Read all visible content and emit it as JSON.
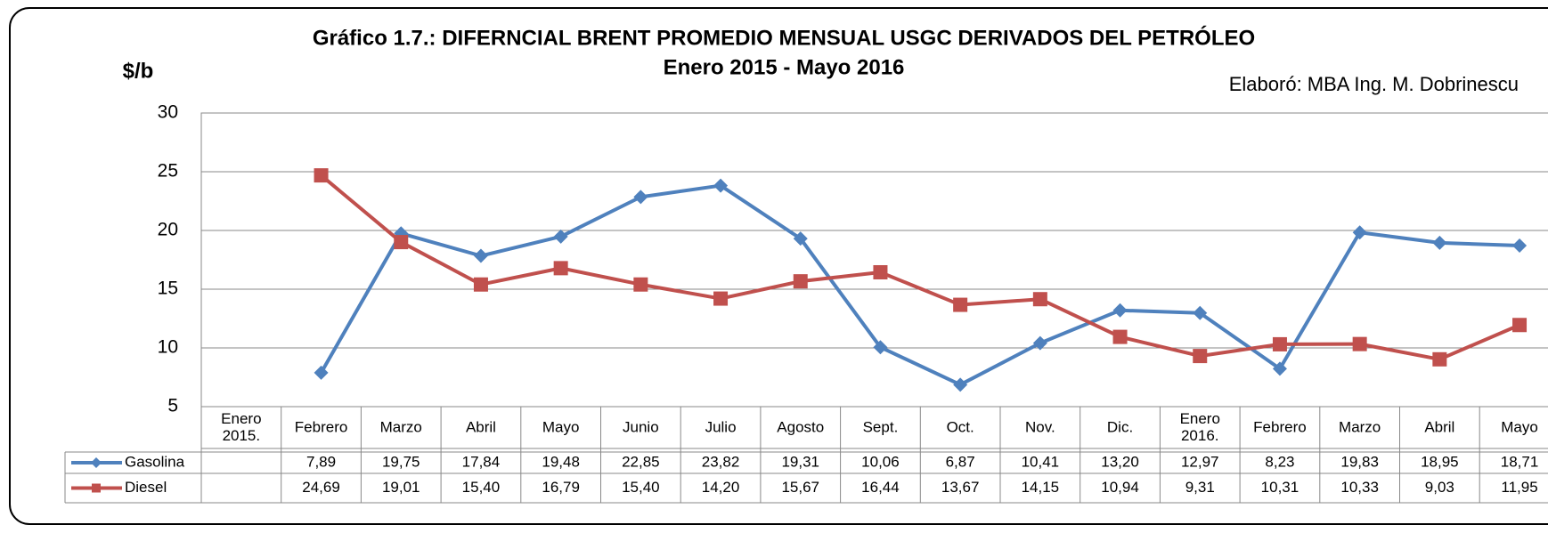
{
  "chart_data": {
    "type": "line",
    "title": "Gráfico 1.7.: DIFERNCIAL BRENT PROMEDIO MENSUAL USGC DERIVADOS DEL PETRÓLEO",
    "subtitle": "Enero 2015 - Mayo 2016",
    "y_label": "$/b",
    "annotation": "Elaboró: MBA Ing. M. Dobrinescu",
    "categories": [
      "Enero 2015.",
      "Febrero",
      "Marzo",
      "Abril",
      "Mayo",
      "Junio",
      "Julio",
      "Agosto",
      "Sept.",
      "Oct.",
      "Nov.",
      "Dic.",
      "Enero 2016.",
      "Febrero",
      "Marzo",
      "Abril",
      "Mayo"
    ],
    "series": [
      {
        "name": "Gasolina",
        "color": "#4f81bd",
        "marker": "diamond",
        "values": [
          null,
          7.89,
          19.75,
          17.84,
          19.48,
          22.85,
          23.82,
          19.31,
          10.06,
          6.87,
          10.41,
          13.2,
          12.97,
          8.23,
          19.83,
          18.95,
          18.71
        ],
        "value_labels": [
          null,
          "7,89",
          "19,75",
          "17,84",
          "19,48",
          "22,85",
          "23,82",
          "19,31",
          "10,06",
          "6,87",
          "10,41",
          "13,20",
          "12,97",
          "8,23",
          "19,83",
          "18,95",
          "18,71"
        ]
      },
      {
        "name": "Diesel",
        "color": "#c0504d",
        "marker": "square",
        "values": [
          null,
          24.69,
          19.01,
          15.4,
          16.79,
          15.4,
          14.2,
          15.67,
          16.44,
          13.67,
          14.15,
          10.94,
          9.31,
          10.31,
          10.33,
          9.03,
          11.95
        ],
        "value_labels": [
          null,
          "24,69",
          "19,01",
          "15,40",
          "16,79",
          "15,40",
          "14,20",
          "15,67",
          "16,44",
          "13,67",
          "14,15",
          "10,94",
          "9,31",
          "10,31",
          "10,33",
          "9,03",
          "11,95"
        ]
      }
    ],
    "ylim": [
      5,
      30
    ],
    "yticks": [
      5,
      10,
      15,
      20,
      25,
      30
    ],
    "grid": true,
    "data_table": true
  }
}
